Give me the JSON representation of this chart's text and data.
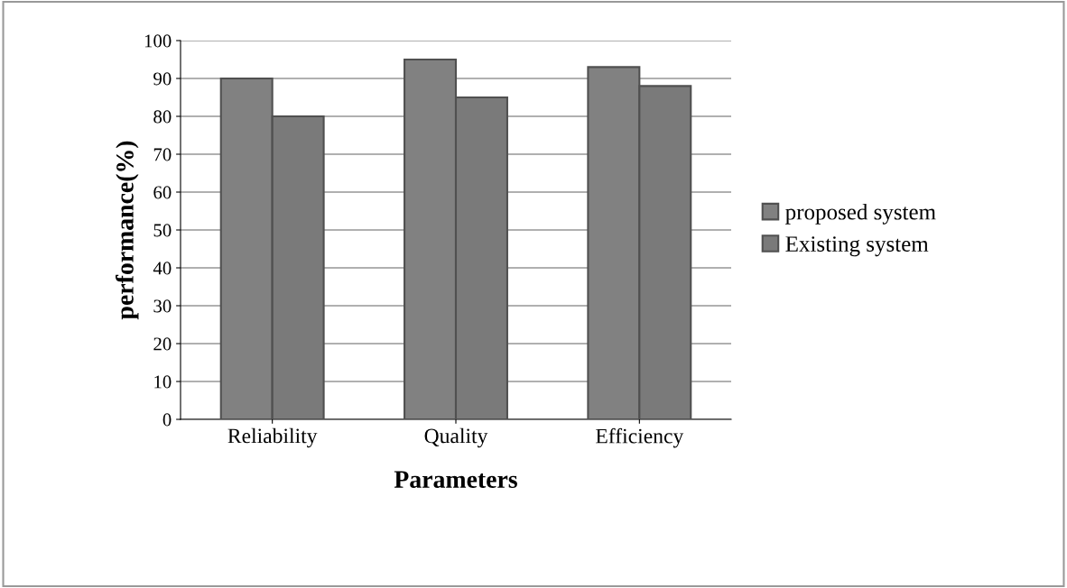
{
  "chart_data": {
    "type": "bar",
    "xlabel": "Parameters",
    "ylabel": "performance(%)",
    "categories": [
      "Reliability",
      "Quality",
      "Efficiency"
    ],
    "series": [
      {
        "name": "proposed system",
        "color": "#818181",
        "values": [
          90,
          95,
          93
        ]
      },
      {
        "name": "Existing system",
        "color": "#7a7a7a",
        "values": [
          80,
          85,
          88
        ]
      }
    ],
    "ylim": [
      0,
      100
    ],
    "yticks": [
      0,
      10,
      20,
      30,
      40,
      50,
      60,
      70,
      80,
      90,
      100
    ],
    "grid": "y",
    "legend": "right"
  }
}
